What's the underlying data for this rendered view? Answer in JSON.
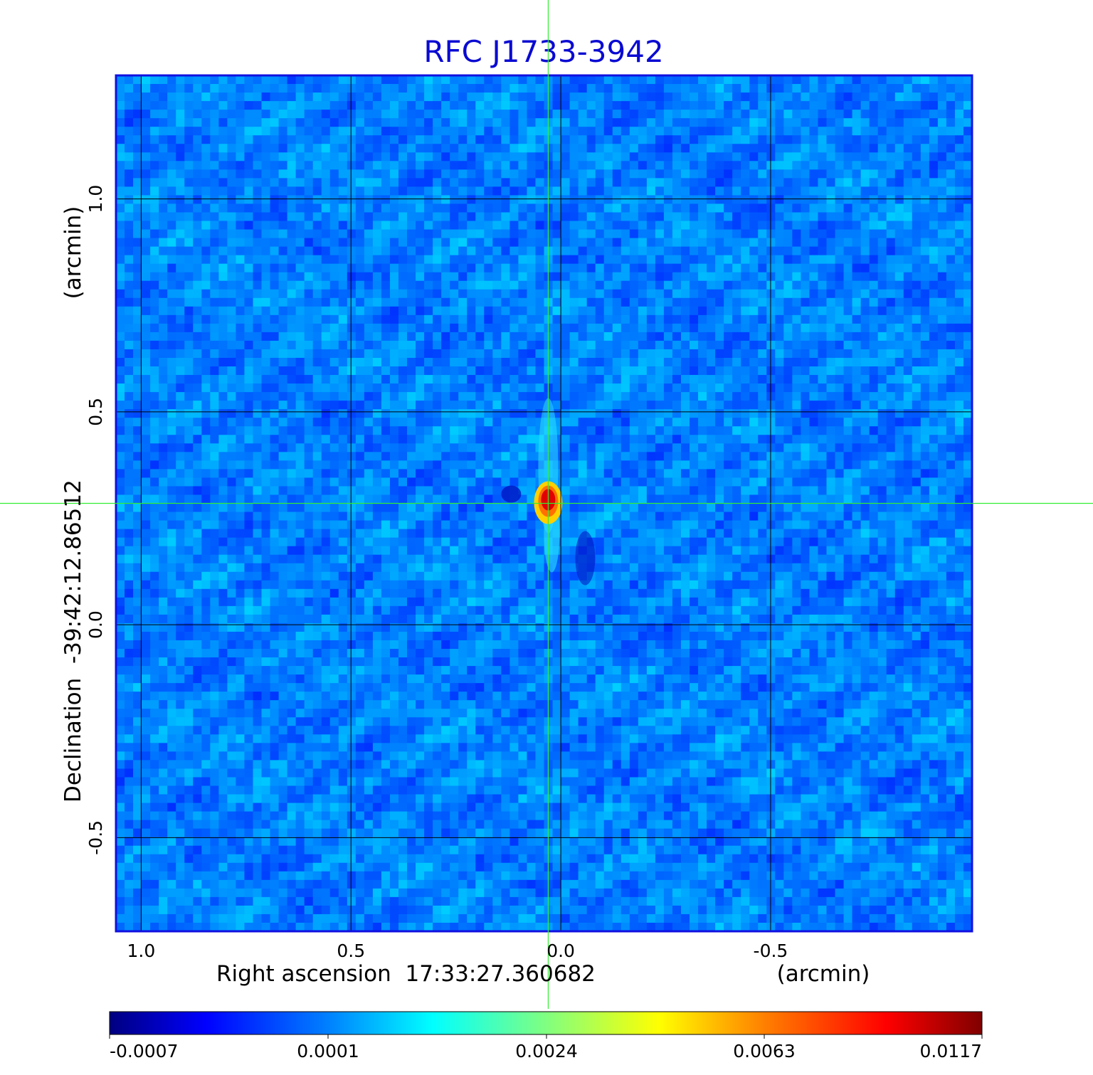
{
  "chart_data": {
    "type": "heatmap",
    "title": "RFC J1733-3942",
    "xlabel": "Right ascension  17:33:27.360682",
    "xlabel_unit": "(arcmin)",
    "ylabel": "Declination  -39:42:12.86512",
    "ylabel_unit": "(arcmin)",
    "x_ticks": [
      1.0,
      0.5,
      0.0,
      -0.5
    ],
    "x_tick_labels": [
      "1.0",
      "0.5",
      "0.0",
      "-0.5"
    ],
    "y_ticks": [
      1.0,
      0.5,
      0.0,
      -0.5
    ],
    "y_tick_labels": [
      "1.0",
      "0.5",
      "0.0",
      "-0.5"
    ],
    "xlim": [
      1.06,
      -0.98
    ],
    "ylim": [
      -0.72,
      1.29
    ],
    "grid": true,
    "crosshair": {
      "x": 0.03,
      "y": 0.285
    },
    "source_peak": {
      "x": 0.03,
      "y": 0.29,
      "value": 0.0117
    },
    "colorbar": {
      "tick_labels": [
        "-0.0007",
        "0.0001",
        "0.0024",
        "0.0063",
        "0.0117"
      ],
      "colormap": "jet",
      "range": [
        -0.0007,
        0.0117
      ]
    },
    "colors": {
      "title": "#0a0ad2",
      "frame": "#1010e0",
      "crosshair": "#33ee33",
      "grid": "#000000"
    }
  }
}
